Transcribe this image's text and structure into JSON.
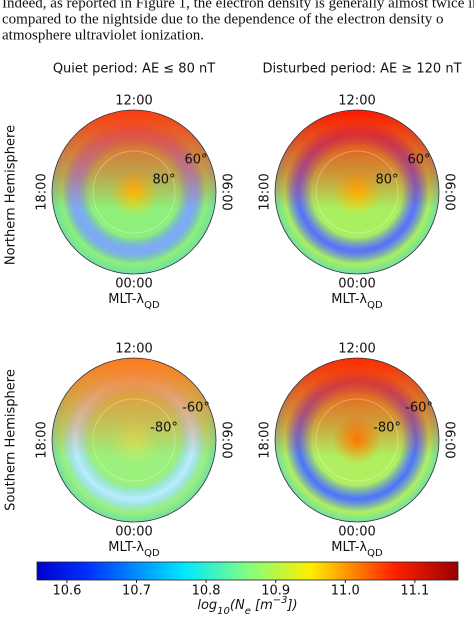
{
  "text_lines": [
    "Indeed, as reported in Figure 1, the electron density is generally almost twice in",
    "compared to the nightside due to the dependence of the electron density o",
    "atmosphere ultraviolet ionization."
  ],
  "column_titles": [
    "Quiet period: AE ≤ 80 nT",
    "Disturbed period: AE ≥ 120 nT"
  ],
  "row_titles": [
    "Northern Hemisphere",
    "Southern Hemisphere"
  ],
  "panels": [
    {
      "top": "12:00",
      "bottom": "00:00",
      "left": "18:00",
      "right": "06:00",
      "inner_lat": "80°",
      "outer_lat": "60°",
      "axis_label": [
        {
          "text": "MLT-λ"
        },
        {
          "text": "QD",
          "sub": true
        }
      ]
    },
    {
      "top": "12:00",
      "bottom": "00:00",
      "left": "18:00",
      "right": "06:00",
      "inner_lat": "80°",
      "outer_lat": "60°",
      "axis_label": [
        {
          "text": "MLT-λ"
        },
        {
          "text": "QD",
          "sub": true
        }
      ]
    },
    {
      "top": "12:00",
      "bottom": "00:00",
      "left": "18:00",
      "right": "06:00",
      "inner_lat": "-80°",
      "outer_lat": "-60°",
      "axis_label": [
        {
          "text": "MLT-λ"
        },
        {
          "text": "QD",
          "sub": true
        }
      ]
    },
    {
      "top": "12:00",
      "bottom": "00:00",
      "left": "18:00",
      "right": "06:00",
      "inner_lat": "-80°",
      "outer_lat": "-60°",
      "axis_label": [
        {
          "text": "MLT-λ"
        },
        {
          "text": "QD",
          "sub": true
        }
      ]
    }
  ],
  "colorbar": {
    "range": [
      10.557,
      11.162
    ],
    "ticks": [
      {
        "value": 10.6,
        "label": "10.6"
      },
      {
        "value": 10.7,
        "label": "10.7"
      },
      {
        "value": 10.8,
        "label": "10.8"
      },
      {
        "value": 10.9,
        "label": "10.9"
      },
      {
        "value": 11.0,
        "label": "11.0"
      },
      {
        "value": 11.1,
        "label": "11.1"
      }
    ],
    "label": [
      {
        "text": "log"
      },
      {
        "text": "10",
        "sub": true
      },
      {
        "text": "(N"
      },
      {
        "text": "e",
        "sub": true
      },
      {
        "text": " [m"
      },
      {
        "text": "−3",
        "sup": true
      },
      {
        "text": "])"
      }
    ]
  }
}
